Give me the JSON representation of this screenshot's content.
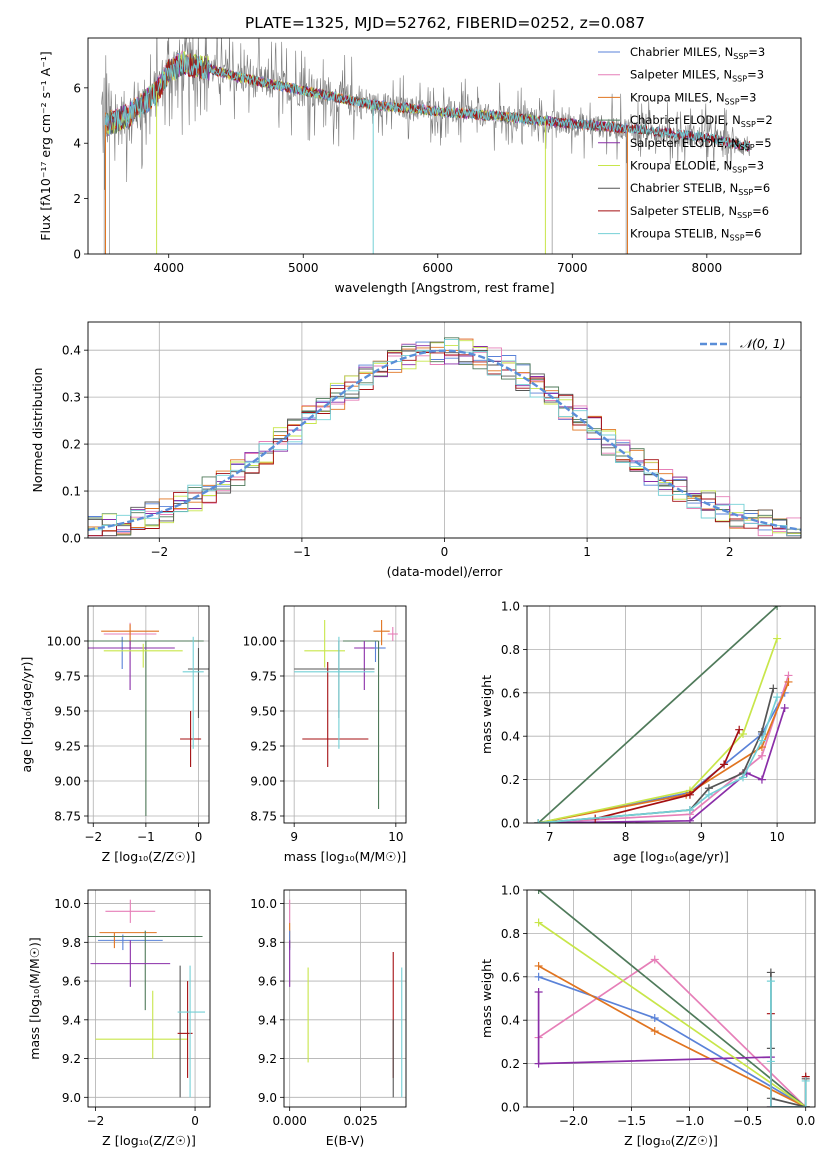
{
  "figure": {
    "title": "PLATE=1325, MJD=52762, FIBERID=0252, z=0.087"
  },
  "colors": {
    "Chabrier MILES": "#5a82d8",
    "Salpeter MILES": "#e67fb8",
    "Kroupa MILES": "#e07420",
    "Chabrier ELODIE": "#4f7a5a",
    "Salpeter ELODIE": "#8a2ea8",
    "Kroupa ELODIE": "#c8e64a",
    "Chabrier STELIB": "#555555",
    "Salpeter STELIB": "#a40f12",
    "Kroupa STELIB": "#74d0d6",
    "data": "#7a7a7a",
    "gaussian": "#5a8ed8",
    "grid": "#b0b0b0"
  },
  "chart_data": [
    {
      "id": "spectrum",
      "type": "line",
      "xlabel": "wavelength [Angstrom, rest frame]",
      "ylabel": "Flux [fλ10⁻¹⁷ erg cm⁻² s⁻¹ A⁻¹]",
      "xlim": [
        3400,
        8700
      ],
      "ylim": [
        0,
        7.8
      ],
      "xticks": [
        4000,
        5000,
        6000,
        7000,
        8000
      ],
      "yticks": [
        0,
        2,
        4,
        6
      ],
      "grid": false,
      "legend_position": "top-right",
      "legend": [
        {
          "label": "Chabrier MILES, N",
          "sub": "SSP",
          "tail": "=3",
          "series": "Chabrier MILES"
        },
        {
          "label": "Salpeter MILES, N",
          "sub": "SSP",
          "tail": "=3",
          "series": "Salpeter MILES"
        },
        {
          "label": "Kroupa MILES, N",
          "sub": "SSP",
          "tail": "=3",
          "series": "Kroupa MILES"
        },
        {
          "label": "Chabrier ELODIE, N",
          "sub": "SSP",
          "tail": "=2",
          "series": "Chabrier ELODIE"
        },
        {
          "label": "Salpeter ELODIE, N",
          "sub": "SSP",
          "tail": "=5",
          "series": "Salpeter ELODIE"
        },
        {
          "label": "Kroupa ELODIE, N",
          "sub": "SSP",
          "tail": "=3",
          "series": "Kroupa ELODIE"
        },
        {
          "label": "Chabrier STELIB, N",
          "sub": "SSP",
          "tail": "=6",
          "series": "Chabrier STELIB"
        },
        {
          "label": "Salpeter STELIB, N",
          "sub": "SSP",
          "tail": "=6",
          "series": "Salpeter STELIB"
        },
        {
          "label": "Kroupa STELIB, N",
          "sub": "SSP",
          "tail": "=6",
          "series": "Kroupa STELIB"
        }
      ],
      "continuum": {
        "x": [
          3500,
          3700,
          3900,
          4000,
          4100,
          4300,
          4500,
          5000,
          5500,
          6000,
          6500,
          7000,
          7500,
          8000,
          8300
        ],
        "y": [
          4.6,
          5.0,
          5.8,
          6.6,
          6.9,
          6.7,
          6.4,
          5.9,
          5.4,
          5.15,
          4.95,
          4.7,
          4.5,
          4.2,
          3.9
        ]
      },
      "model_cut_edges": [
        {
          "series": "Kroupa MILES",
          "x": 3530
        },
        {
          "series": "Kroupa MILES",
          "x": 7410
        },
        {
          "series": "Kroupa ELODIE",
          "x": 3910
        },
        {
          "series": "Kroupa ELODIE",
          "x": 6800
        },
        {
          "series": "Kroupa STELIB",
          "x": 5520
        }
      ]
    },
    {
      "id": "residuals",
      "type": "histogram",
      "xlabel": "(data-model)/error",
      "ylabel": "Normed distribution",
      "xlim": [
        -2.5,
        2.5
      ],
      "ylim": [
        0,
        0.46
      ],
      "xticks": [
        -2,
        -1,
        0,
        1,
        2
      ],
      "yticks": [
        0.0,
        0.1,
        0.2,
        0.3,
        0.4
      ],
      "grid": true,
      "legend_position": "top-right",
      "legend_label": "𝒩(0, 1)",
      "gaussian": {
        "mean": 0,
        "sigma": 1
      }
    },
    {
      "id": "age-vs-Z",
      "type": "errorbar",
      "xlabel": "Z [log₁₀(Z/Z☉)]",
      "ylabel": "age  [log₁₀(age/yr)]",
      "xlim": [
        -2.1,
        0.2
      ],
      "ylim": [
        8.7,
        10.25
      ],
      "xticks": [
        -2,
        -1,
        0
      ],
      "yticks": [
        8.75,
        9.0,
        9.25,
        9.5,
        9.75,
        10.0
      ],
      "grid": true,
      "points": [
        {
          "series": "Chabrier MILES",
          "x": -1.45,
          "xerr": [
            0.75,
            0.75
          ],
          "y": 9.95,
          "yerr": [
            0.15,
            0.08
          ]
        },
        {
          "series": "Salpeter MILES",
          "x": -1.3,
          "xerr": [
            0.5,
            0.5
          ],
          "y": 10.05,
          "yerr": [
            0.1,
            0.08
          ]
        },
        {
          "series": "Kroupa MILES",
          "x": -1.3,
          "xerr": [
            0.55,
            0.55
          ],
          "y": 10.07,
          "yerr": [
            0.1,
            0.05
          ]
        },
        {
          "series": "Chabrier ELODIE",
          "x": -1.0,
          "xerr": [
            1.1,
            1.1
          ],
          "y": 10.0,
          "yerr": [
            1.25,
            0.0
          ]
        },
        {
          "series": "Salpeter ELODIE",
          "x": -1.3,
          "xerr": [
            0.85,
            0.85
          ],
          "y": 9.95,
          "yerr": [
            0.3,
            0.05
          ]
        },
        {
          "series": "Kroupa ELODIE",
          "x": -1.05,
          "xerr": [
            0.75,
            0.75
          ],
          "y": 9.93,
          "yerr": [
            0.12,
            0.05
          ]
        },
        {
          "series": "Chabrier STELIB",
          "x": 0.0,
          "xerr": [
            0.2,
            0.2
          ],
          "y": 9.8,
          "yerr": [
            0.35,
            0.15
          ]
        },
        {
          "series": "Salpeter STELIB",
          "x": -0.15,
          "xerr": [
            0.2,
            0.2
          ],
          "y": 9.3,
          "yerr": [
            0.2,
            0.2
          ]
        },
        {
          "series": "Kroupa STELIB",
          "x": -0.1,
          "xerr": [
            0.2,
            0.2
          ],
          "y": 9.78,
          "yerr": [
            0.55,
            0.25
          ]
        }
      ]
    },
    {
      "id": "age-vs-mass",
      "type": "errorbar",
      "xlabel": "mass [log₁₀(M/M☉)]",
      "ylabel": "",
      "xlim": [
        8.9,
        10.1
      ],
      "ylim": [
        8.7,
        10.25
      ],
      "xticks": [
        9,
        10
      ],
      "yticks": [
        8.75,
        9.0,
        9.25,
        9.5,
        9.75,
        10.0
      ],
      "grid": true,
      "points": [
        {
          "series": "Chabrier MILES",
          "x": 9.8,
          "xerr": [
            0.05,
            0.1
          ],
          "y": 9.95,
          "yerr": [
            0.1,
            0.05
          ]
        },
        {
          "series": "Salpeter MILES",
          "x": 9.97,
          "xerr": [
            0.05,
            0.05
          ],
          "y": 10.05,
          "yerr": [
            0.05,
            0.05
          ]
        },
        {
          "series": "Kroupa MILES",
          "x": 9.86,
          "xerr": [
            0.08,
            0.08
          ],
          "y": 10.07,
          "yerr": [
            0.1,
            0.08
          ]
        },
        {
          "series": "Chabrier ELODIE",
          "x": 9.83,
          "xerr": [
            0.35,
            0.0
          ],
          "y": 10.0,
          "yerr": [
            1.2,
            0.0
          ]
        },
        {
          "series": "Salpeter ELODIE",
          "x": 9.69,
          "xerr": [
            0.1,
            0.1
          ],
          "y": 9.95,
          "yerr": [
            0.3,
            0.05
          ]
        },
        {
          "series": "Kroupa ELODIE",
          "x": 9.3,
          "xerr": [
            0.2,
            0.2
          ],
          "y": 9.93,
          "yerr": [
            0.12,
            0.22
          ]
        },
        {
          "series": "Chabrier STELIB",
          "x": 9.44,
          "xerr": [
            0.44,
            0.35
          ],
          "y": 9.8,
          "yerr": [
            0.35,
            0.2
          ]
        },
        {
          "series": "Salpeter STELIB",
          "x": 9.33,
          "xerr": [
            0.25,
            0.4
          ],
          "y": 9.3,
          "yerr": [
            0.2,
            0.55
          ]
        },
        {
          "series": "Kroupa STELIB",
          "x": 9.44,
          "xerr": [
            0.44,
            0.35
          ],
          "y": 9.78,
          "yerr": [
            0.55,
            0.25
          ]
        }
      ]
    },
    {
      "id": "weight-vs-age",
      "type": "line",
      "xlabel": "age  [log₁₀(age/yr)]",
      "ylabel": "mass weight",
      "xlim": [
        6.7,
        10.5
      ],
      "ylim": [
        0,
        1.0
      ],
      "xticks": [
        7,
        8,
        9,
        10
      ],
      "yticks": [
        0.0,
        0.2,
        0.4,
        0.6,
        0.8,
        1.0
      ],
      "grid": true,
      "series": [
        {
          "name": "Chabrier MILES",
          "x": [
            6.85,
            8.85,
            9.8,
            10.1
          ],
          "y": [
            0.0,
            0.14,
            0.41,
            0.6
          ]
        },
        {
          "name": "Salpeter MILES",
          "x": [
            6.85,
            8.85,
            9.8,
            10.15
          ],
          "y": [
            0.0,
            0.04,
            0.31,
            0.68
          ]
        },
        {
          "name": "Kroupa MILES",
          "x": [
            6.85,
            8.8,
            9.8,
            10.15
          ],
          "y": [
            0.0,
            0.13,
            0.35,
            0.65
          ]
        },
        {
          "name": "Chabrier ELODIE",
          "x": [
            6.85,
            10.0
          ],
          "y": [
            0.0,
            1.0
          ]
        },
        {
          "name": "Salpeter ELODIE",
          "x": [
            6.85,
            8.85,
            9.6,
            9.8,
            10.1
          ],
          "y": [
            0.0,
            0.01,
            0.23,
            0.2,
            0.53
          ]
        },
        {
          "name": "Kroupa ELODIE",
          "x": [
            6.85,
            8.85,
            9.55,
            10.0
          ],
          "y": [
            0.0,
            0.15,
            0.41,
            0.85
          ]
        },
        {
          "name": "Chabrier STELIB",
          "x": [
            6.85,
            8.85,
            9.1,
            9.55,
            9.8,
            9.95
          ],
          "y": [
            0.0,
            0.06,
            0.16,
            0.23,
            0.42,
            0.62
          ]
        },
        {
          "name": "Salpeter STELIB",
          "x": [
            7.6,
            8.85,
            9.3,
            9.5
          ],
          "y": [
            0.02,
            0.13,
            0.27,
            0.43
          ]
        },
        {
          "name": "Kroupa STELIB",
          "x": [
            6.85,
            8.85,
            9.1,
            9.55,
            9.8,
            10.0
          ],
          "y": [
            0.0,
            0.06,
            0.13,
            0.21,
            0.38,
            0.58
          ]
        }
      ]
    },
    {
      "id": "mass-vs-Z",
      "type": "errorbar",
      "xlabel": "Z [log₁₀(Z/Z☉)]",
      "ylabel": "mass [log₁₀(M/M☉)]",
      "xlim": [
        -2.15,
        0.3
      ],
      "ylim": [
        8.95,
        10.07
      ],
      "xticks": [
        -2,
        0
      ],
      "yticks": [
        9.0,
        9.2,
        9.4,
        9.6,
        9.8,
        10.0
      ],
      "grid": true,
      "points": [
        {
          "series": "Chabrier MILES",
          "x": -1.45,
          "xerr": [
            0.5,
            0.8
          ],
          "y": 9.81,
          "yerr": [
            0.05,
            0.03
          ]
        },
        {
          "series": "Salpeter MILES",
          "x": -1.3,
          "xerr": [
            0.5,
            0.5
          ],
          "y": 9.96,
          "yerr": [
            0.06,
            0.06
          ]
        },
        {
          "series": "Kroupa MILES",
          "x": -1.62,
          "xerr": [
            0.3,
            0.85
          ],
          "y": 9.85,
          "yerr": [
            0.08,
            0.0
          ]
        },
        {
          "series": "Chabrier ELODIE",
          "x": -1.0,
          "xerr": [
            1.15,
            1.15
          ],
          "y": 9.83,
          "yerr": [
            0.38,
            0.03
          ]
        },
        {
          "series": "Salpeter ELODIE",
          "x": -1.3,
          "xerr": [
            0.8,
            0.8
          ],
          "y": 9.69,
          "yerr": [
            0.12,
            0.12
          ]
        },
        {
          "series": "Kroupa ELODIE",
          "x": -1.05,
          "xerr": [
            0.95,
            0.9
          ],
          "y": 9.3,
          "yerr": [
            0.0,
            0.0
          ]
        },
        {
          "series": "Chabrier STELIB",
          "x": -0.3,
          "xerr": [
            0.0,
            0.0
          ],
          "y": 9.44,
          "yerr": [
            0.44,
            0.24
          ]
        },
        {
          "series": "Salpeter STELIB",
          "x": -0.15,
          "xerr": [
            0.2,
            0.1
          ],
          "y": 9.33,
          "yerr": [
            0.23,
            0.27
          ]
        },
        {
          "series": "Kroupa STELIB",
          "x": -0.1,
          "xerr": [
            0.25,
            0.3
          ],
          "y": 9.44,
          "yerr": [
            0.44,
            0.24
          ]
        },
        {
          "series": "Kroupa ELODIE",
          "x": -0.85,
          "xerr": [
            0.0,
            0.0
          ],
          "y": 9.55,
          "yerr": [
            0.35,
            0.0
          ]
        }
      ]
    },
    {
      "id": "mass-vs-ebv",
      "type": "errorbar",
      "xlabel": "E(B-V)",
      "ylabel": "",
      "xlim": [
        -0.002,
        0.041
      ],
      "ylim": [
        8.95,
        10.07
      ],
      "xticks": [
        0.0,
        0.025
      ],
      "xticklabels": [
        "0.000",
        "0.025"
      ],
      "yticks": [
        9.0,
        9.2,
        9.4,
        9.6,
        9.8,
        10.0
      ],
      "grid": true,
      "points": [
        {
          "series": "Salpeter MILES",
          "x": 0.0,
          "y": 9.96,
          "yerr": [
            0.06,
            0.06
          ]
        },
        {
          "series": "Kroupa MILES",
          "x": 0.0,
          "y": 9.85,
          "yerr": [
            0.08,
            0.05
          ]
        },
        {
          "series": "Chabrier MILES",
          "x": 0.0,
          "y": 9.81,
          "yerr": [
            0.05,
            0.05
          ]
        },
        {
          "series": "Salpeter ELODIE",
          "x": 0.0,
          "y": 9.69,
          "yerr": [
            0.12,
            0.12
          ]
        },
        {
          "series": "Kroupa ELODIE",
          "x": 0.0065,
          "y": 9.4,
          "yerr": [
            0.22,
            0.27
          ]
        },
        {
          "series": "Salpeter STELIB",
          "x": 0.0365,
          "y": 9.33,
          "yerr": [
            0.23,
            0.42
          ]
        },
        {
          "series": "Kroupa STELIB",
          "x": 0.0395,
          "y": 9.3,
          "yerr": [
            0.3,
            0.37
          ]
        },
        {
          "series": "Chabrier STELIB",
          "x": 0.0365,
          "y": 9.2,
          "yerr": [
            0.2,
            0.2
          ]
        }
      ]
    },
    {
      "id": "weight-vs-Z",
      "type": "line",
      "xlabel": "Z [log₁₀(Z/Z☉)]",
      "ylabel": "mass weight",
      "xlim": [
        -2.4,
        0.08
      ],
      "ylim": [
        0,
        1.0
      ],
      "xticks": [
        -2.0,
        -1.5,
        -1.0,
        -0.5,
        0.0
      ],
      "xticklabels": [
        "−2.0",
        "−1.5",
        "−1.0",
        "−0.5",
        "0.0"
      ],
      "yticks": [
        0.0,
        0.2,
        0.4,
        0.6,
        0.8,
        1.0
      ],
      "grid": true,
      "series": [
        {
          "name": "Chabrier MILES",
          "x": [
            -2.3,
            -1.3,
            0.0
          ],
          "y": [
            0.6,
            0.41,
            0.0
          ]
        },
        {
          "name": "Salpeter MILES",
          "x": [
            -2.3,
            -1.3,
            0.0
          ],
          "y": [
            0.32,
            0.68,
            0.0
          ]
        },
        {
          "name": "Kroupa MILES",
          "x": [
            -2.3,
            -1.3,
            0.0
          ],
          "y": [
            0.65,
            0.35,
            0.0
          ]
        },
        {
          "name": "Chabrier ELODIE",
          "x": [
            -2.3,
            0.0
          ],
          "y": [
            1.0,
            0.0
          ]
        },
        {
          "name": "Salpeter ELODIE",
          "x": [
            -2.3,
            -2.3,
            -0.3,
            -0.3,
            0.0
          ],
          "y": [
            0.53,
            0.2,
            0.23,
            0.0,
            0.0
          ]
        },
        {
          "name": "Kroupa ELODIE",
          "x": [
            -2.3,
            0.0
          ],
          "y": [
            0.85,
            0.0
          ]
        },
        {
          "name": "Chabrier STELIB",
          "x": [
            -0.3,
            -0.3,
            -0.3,
            0.0,
            0.0
          ],
          "y": [
            0.62,
            0.27,
            0.04,
            0.0,
            0.13
          ]
        },
        {
          "name": "Salpeter STELIB",
          "x": [
            -0.3,
            -0.3,
            0.0,
            0.0
          ],
          "y": [
            0.43,
            0.0,
            0.0,
            0.14
          ]
        },
        {
          "name": "Kroupa STELIB",
          "x": [
            -0.3,
            -0.3,
            -0.3,
            0.0,
            0.0
          ],
          "y": [
            0.58,
            0.21,
            0.0,
            0.0,
            0.12
          ]
        }
      ]
    }
  ]
}
